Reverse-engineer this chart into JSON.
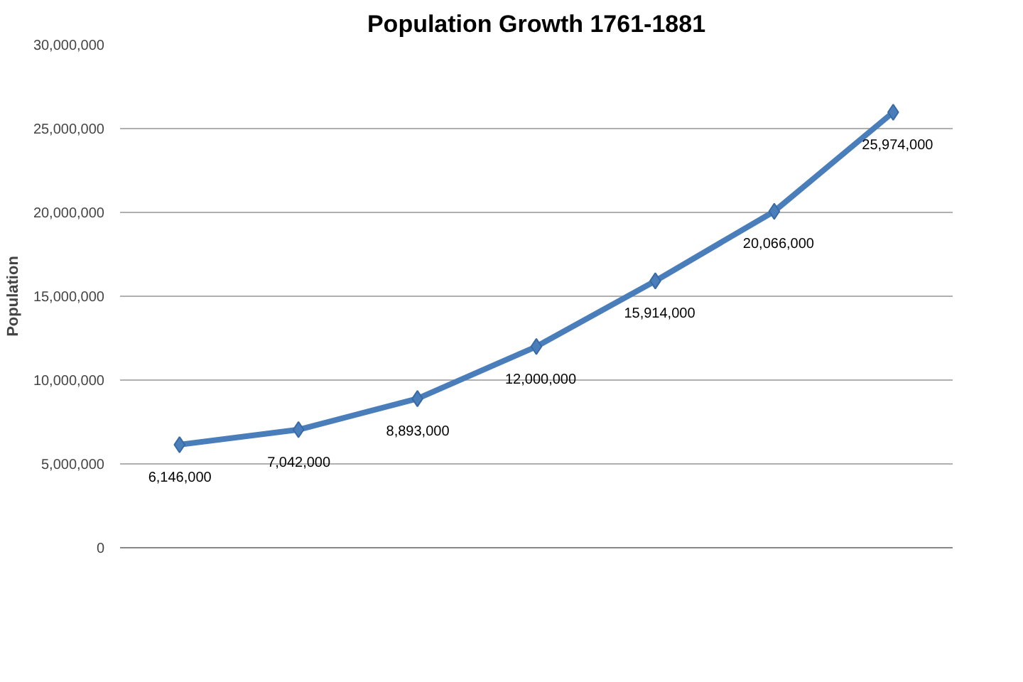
{
  "chart_data": {
    "type": "line",
    "title": "Population Growth 1761-1881",
    "ylabel": "Population",
    "categories": [
      null,
      null,
      null,
      null,
      null,
      null,
      null
    ],
    "series": [
      {
        "color": "#4a7ebb",
        "values": [
          6146000,
          7042000,
          8893000,
          12000000,
          15914000,
          20066000,
          25974000
        ],
        "value_labels": [
          "6,146,000",
          "7,042,000",
          "8,893,000",
          "12,000,000",
          "15,914,000",
          "20,066,000",
          "25,974,000"
        ]
      }
    ],
    "ylim": [
      0,
      30000000
    ],
    "yticks": [
      {
        "value": 0,
        "label": "0"
      },
      {
        "value": 5000000,
        "label": "5,000,000"
      },
      {
        "value": 10000000,
        "label": "10,000,000"
      },
      {
        "value": 15000000,
        "label": "15,000,000"
      },
      {
        "value": 20000000,
        "label": "20,000,000"
      },
      {
        "value": 25000000,
        "label": "25,000,000"
      },
      {
        "value": 30000000,
        "label": "30,000,000"
      }
    ],
    "grid": "y",
    "marker": "diamond",
    "line_style": "solid"
  }
}
